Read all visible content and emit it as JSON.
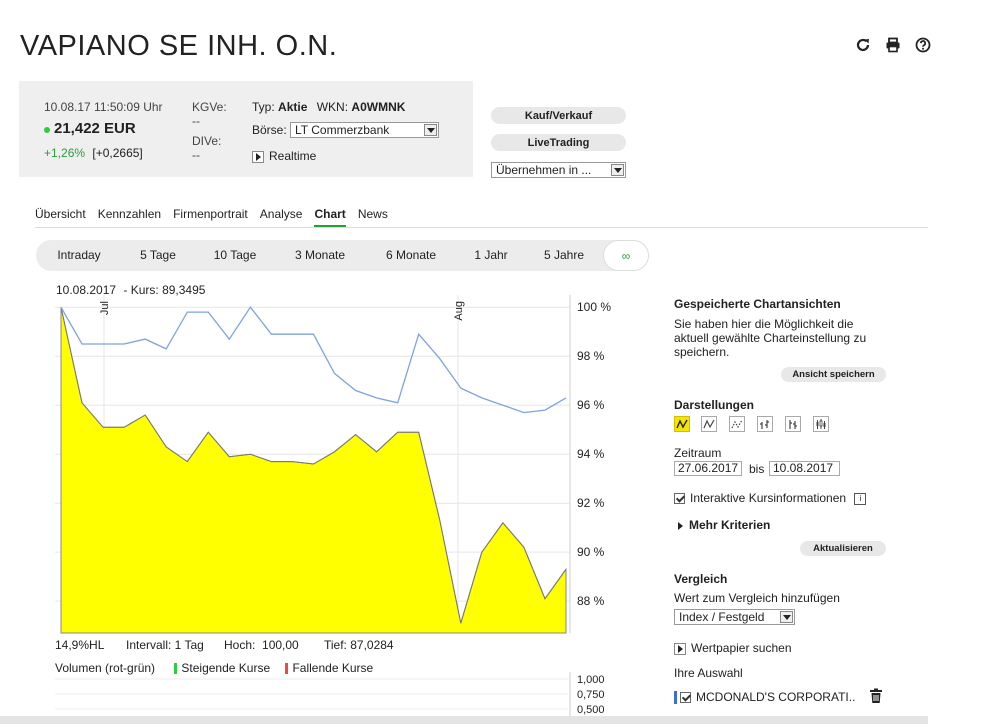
{
  "page": {
    "title": "VAPIANO SE INH. O.N."
  },
  "toolbar": {
    "icons": [
      "refresh-icon",
      "print-icon",
      "help-icon"
    ]
  },
  "quote": {
    "datetime": "10.08.17  11:50:09 Uhr",
    "price": "21,422 EUR",
    "change_pct": "+1,26%",
    "change_abs": "[+0,2665]",
    "kgve_label": "KGVe:",
    "kgve_value": "--",
    "dive_label": "DIVe:",
    "dive_value": "--",
    "typ_label": "Typ:",
    "typ_value": "Aktie",
    "wkn_label": "WKN:",
    "wkn_value": "A0WMNK",
    "boerse_label": "Börse:",
    "boerse_value": "LT Commerzbank",
    "realtime_label": "Realtime",
    "accent_color": "#2ecc40"
  },
  "actions": {
    "kauf_label": "Kauf/Verkauf",
    "livetrading_label": "LiveTrading",
    "uebernehmen_value": "Übernehmen in ..."
  },
  "tabs": [
    {
      "label": "Übersicht"
    },
    {
      "label": "Kennzahlen"
    },
    {
      "label": "Firmenportrait"
    },
    {
      "label": "Analyse"
    },
    {
      "label": "Chart",
      "active": true
    },
    {
      "label": "News"
    }
  ],
  "periods": [
    {
      "label": "Intraday"
    },
    {
      "label": "5 Tage"
    },
    {
      "label": "10 Tage"
    },
    {
      "label": "3 Monate"
    },
    {
      "label": "6 Monate"
    },
    {
      "label": "1 Jahr"
    },
    {
      "label": "5 Jahre"
    },
    {
      "label": "∞",
      "active": true
    }
  ],
  "chart_head": {
    "date": "10.08.2017",
    "kurs": "- Kurs: 89,3495"
  },
  "stats": {
    "hl": "14,9%HL",
    "intervall": "Intervall: 1 Tag",
    "hoch": "Hoch:  100,00",
    "tief": "Tief: 87,0284"
  },
  "volume": {
    "label": "Volumen (rot-grün)",
    "rising": "Steigende Kurse",
    "falling": "Fallende Kurse",
    "ticks": [
      "1,000",
      "0,750",
      "0,500"
    ]
  },
  "chart_data": {
    "type": "area",
    "x_labels": [
      "Jul",
      "Aug"
    ],
    "ylim": [
      86.7,
      100.5
    ],
    "yticks": [
      100,
      98,
      96,
      94,
      92,
      90,
      88
    ],
    "ytick_labels": [
      "100 %",
      "98 %",
      "96 %",
      "94 %",
      "92 %",
      "90 %",
      "88 %"
    ],
    "grid": true,
    "fill_color": "#ffff00",
    "line_color": "#7fa3dd",
    "series": [
      {
        "values": [
          100.0,
          96.1,
          95.1,
          95.1,
          95.6,
          94.3,
          93.7,
          94.9,
          93.9,
          94.0,
          93.7,
          93.7,
          93.6,
          94.1,
          94.8,
          94.1,
          94.9,
          94.9,
          91.3,
          87.1,
          90.0,
          91.2,
          90.2,
          88.1,
          89.3
        ]
      },
      {
        "values": [
          100.0,
          98.5,
          98.5,
          98.5,
          98.7,
          98.3,
          99.8,
          99.8,
          98.7,
          100.0,
          98.9,
          98.9,
          98.9,
          97.3,
          96.6,
          96.3,
          96.1,
          98.9,
          97.9,
          96.7,
          96.3,
          96.0,
          95.7,
          95.8,
          96.3
        ]
      }
    ]
  },
  "sidebar": {
    "saved_title": "Gespeicherte Chartansichten",
    "saved_text": "Sie haben hier die Möglichkeit die aktuell gewählte Charteinstellung zu speichern.",
    "save_button": "Ansicht speichern",
    "darstellungen_title": "Darstellungen",
    "zeitraum_label": "Zeitraum",
    "date_from": "27.06.2017",
    "bis_label": "bis",
    "date_to": "10.08.2017",
    "interaktive_label": "Interaktive Kursinformationen",
    "mehr_label": "Mehr Kriterien",
    "aktualisieren_button": "Aktualisieren",
    "vergleich_title": "Vergleich",
    "vergleich_text": "Wert zum Vergleich hinzufügen",
    "index_select": "Index / Festgeld",
    "wertpapier_label": "Wertpapier suchen",
    "auswahl_label": "Ihre Auswahl",
    "auswahl_item": "MCDONALD'S CORPORATI..",
    "auswahl_color": "#3b6fd1"
  }
}
